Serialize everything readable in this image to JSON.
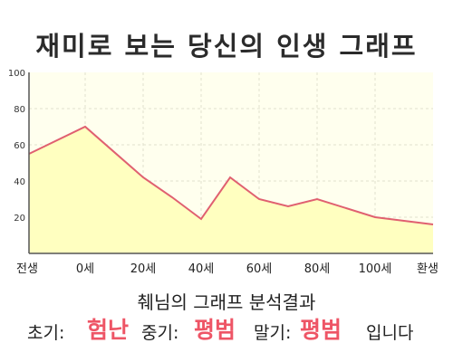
{
  "title": "재미로 보는 당신의 인생 그래프",
  "summary": {
    "heading": "췌님의 그래프 분석결과",
    "early_label": "초기:",
    "early_value": "험난",
    "mid_label": "중기:",
    "mid_value": "평범",
    "late_label": "말기:",
    "late_value": "평범",
    "suffix": "입니다"
  },
  "colors": {
    "line": "#e06070",
    "fill": "#ffffc0",
    "plot_background": "#ffffee",
    "grid": "#e2e2cf",
    "highlight": "#ee5566",
    "text": "#222222"
  },
  "chart_data": {
    "type": "area",
    "x_tick_labels": [
      "전생",
      "0세",
      "20세",
      "40세",
      "60세",
      "80세",
      "100세",
      "환생"
    ],
    "y_ticks": [
      20,
      40,
      60,
      80,
      100
    ],
    "ylim": [
      0,
      100
    ],
    "grid": true,
    "points": [
      {
        "x": "전생",
        "y": 55
      },
      {
        "x": "0세",
        "y": 70
      },
      {
        "x": "20세",
        "y": 42
      },
      {
        "x": "30세",
        "y": 31
      },
      {
        "x": "40세",
        "y": 19
      },
      {
        "x": "50세",
        "y": 42
      },
      {
        "x": "60세",
        "y": 30
      },
      {
        "x": "70세",
        "y": 26
      },
      {
        "x": "80세",
        "y": 30
      },
      {
        "x": "100세",
        "y": 20
      },
      {
        "x": "환생",
        "y": 16
      }
    ]
  }
}
